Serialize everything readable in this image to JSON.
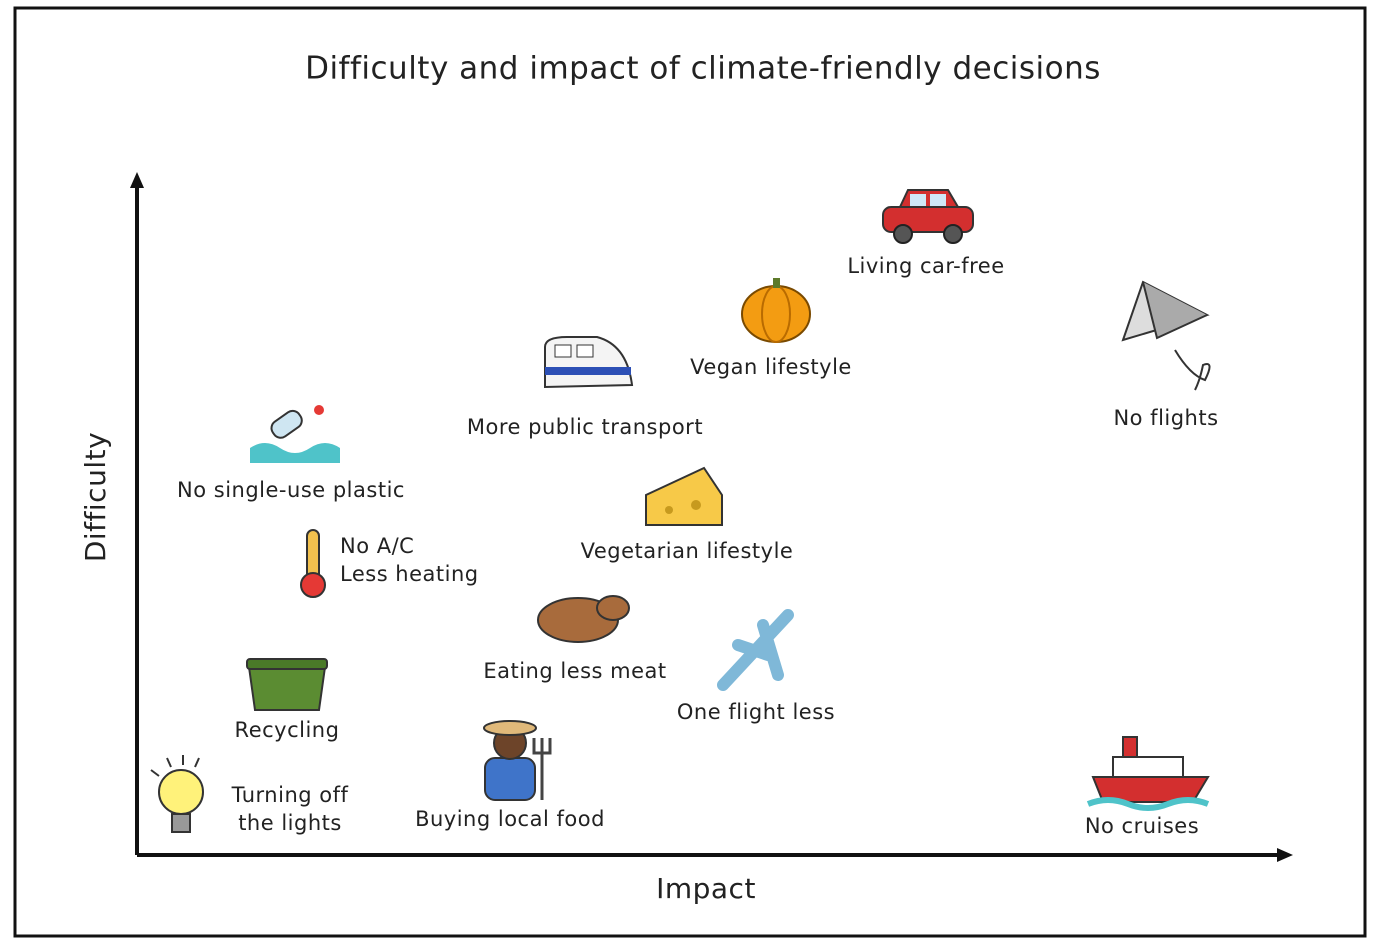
{
  "header": {
    "title": "Difficulty and impact of climate-friendly decisions"
  },
  "axes": {
    "y_label": "Difficulty",
    "x_label": "Impact"
  },
  "items": [
    {
      "label": [
        "Living car-free"
      ]
    },
    {
      "label": [
        "Vegan lifestyle"
      ]
    },
    {
      "label": [
        "No flights"
      ]
    },
    {
      "label": [
        "More public transport"
      ]
    },
    {
      "label": [
        "No single-use plastic"
      ]
    },
    {
      "label": [
        "Vegetarian lifestyle"
      ]
    },
    {
      "label": [
        "No A/C",
        "Less heating"
      ]
    },
    {
      "label": [
        "Eating less meat"
      ]
    },
    {
      "label": [
        "One flight less"
      ]
    },
    {
      "label": [
        "Recycling"
      ]
    },
    {
      "label": [
        "Turning off",
        "the lights"
      ]
    },
    {
      "label": [
        "Buying local food"
      ]
    },
    {
      "label": [
        "No cruises"
      ]
    }
  ]
}
